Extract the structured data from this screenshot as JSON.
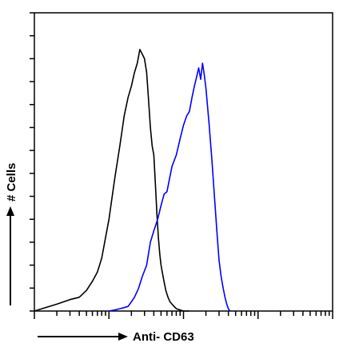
{
  "chart_data": {
    "type": "line",
    "title": "",
    "xlabel": "Anti- CD63",
    "ylabel": "# Cells",
    "x_scale": "log",
    "xlim": [
      1,
      10000
    ],
    "ylim": [
      0,
      130
    ],
    "grid": false,
    "legend": "none",
    "series": [
      {
        "color": "#000000",
        "x": [
          1,
          2,
          3,
          4,
          5,
          6,
          7,
          8,
          9,
          10,
          12,
          14,
          16,
          18,
          20,
          22,
          24,
          26,
          28,
          30,
          32,
          34,
          36,
          38,
          40,
          42,
          44,
          46,
          48,
          50,
          54,
          58,
          62,
          66,
          70,
          75,
          80,
          90,
          100,
          110,
          120
        ],
        "y": [
          0,
          3,
          5,
          6,
          9,
          13,
          17,
          23,
          32,
          40,
          58,
          72,
          85,
          93,
          98,
          104,
          108,
          114,
          112,
          110,
          104,
          92,
          80,
          72,
          68,
          55,
          42,
          32,
          25,
          20,
          14,
          9,
          6,
          4,
          3,
          2,
          1,
          0.5,
          0,
          0,
          0
        ]
      },
      {
        "color": "#0000ff",
        "x": [
          10,
          12,
          14,
          16,
          18,
          20,
          22,
          25,
          28,
          32,
          36,
          40,
          45,
          50,
          55,
          60,
          70,
          80,
          90,
          100,
          110,
          120,
          130,
          140,
          150,
          160,
          170,
          180,
          190,
          200,
          220,
          240,
          260,
          280,
          300,
          320,
          340,
          360,
          380,
          400,
          420
        ],
        "y": [
          0,
          0.5,
          1,
          1.5,
          2,
          4,
          6,
          10,
          15,
          20,
          30,
          35,
          40,
          46,
          51,
          52,
          63,
          68,
          75,
          81,
          85,
          87,
          93,
          98,
          102,
          106,
          101,
          108,
          103,
          97,
          82,
          66,
          50,
          35,
          22,
          15,
          10,
          6,
          3,
          1,
          0
        ]
      }
    ]
  }
}
